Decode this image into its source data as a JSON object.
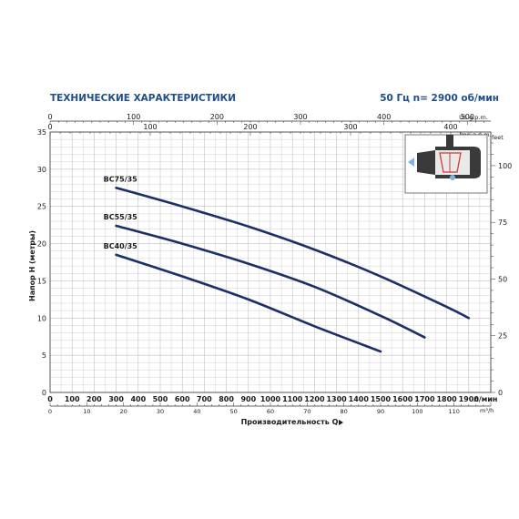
{
  "header": {
    "title": "ТЕХНИЧЕСКИЕ ХАРАКТЕРИСТИКИ",
    "spec": "50 Гц  n= 2900 об/мин"
  },
  "colors": {
    "accent": "#1f4e8c",
    "curve": "#1c2f66",
    "grid": "#bfbfbf",
    "axis": "#333333"
  },
  "chart_data": {
    "type": "line",
    "xlabel": "Производительность Q",
    "ylabel": "Напор H (метры)",
    "xlim": [
      0,
      2000
    ],
    "ylim": [
      0,
      35
    ],
    "x_unit": "л/мин",
    "x_ticks": [
      0,
      100,
      200,
      300,
      400,
      500,
      600,
      700,
      800,
      900,
      1000,
      1100,
      1200,
      1300,
      1400,
      1500,
      1600,
      1700,
      1800,
      1900
    ],
    "y_ticks": [
      0,
      5,
      10,
      15,
      20,
      25,
      30,
      35
    ],
    "secondary_axes": {
      "us_gpm": {
        "label": "US g.p.m.",
        "ticks": [
          0,
          100,
          200,
          300,
          400,
          500
        ]
      },
      "imp_gpm": {
        "label": "Imp g.p.m.",
        "ticks": [
          0,
          100,
          200,
          300,
          400
        ]
      },
      "m3h": {
        "label": "m³/h",
        "ticks": [
          0,
          10,
          20,
          30,
          40,
          50,
          60,
          70,
          80,
          90,
          100,
          110
        ]
      },
      "feet": {
        "label": "feet",
        "ticks": [
          0,
          25,
          50,
          75,
          100
        ]
      }
    },
    "series": [
      {
        "name": "BC75/35",
        "x": [
          300,
          600,
          900,
          1200,
          1500,
          1800,
          1900
        ],
        "y": [
          27.5,
          25.0,
          22.3,
          19.2,
          15.6,
          11.5,
          10.0
        ]
      },
      {
        "name": "BC55/35",
        "x": [
          300,
          600,
          900,
          1200,
          1500,
          1700
        ],
        "y": [
          22.4,
          20.0,
          17.3,
          14.2,
          10.3,
          7.4
        ]
      },
      {
        "name": "BC40/35",
        "x": [
          300,
          600,
          900,
          1200,
          1500
        ],
        "y": [
          18.5,
          15.6,
          12.5,
          8.9,
          5.5
        ]
      }
    ]
  }
}
